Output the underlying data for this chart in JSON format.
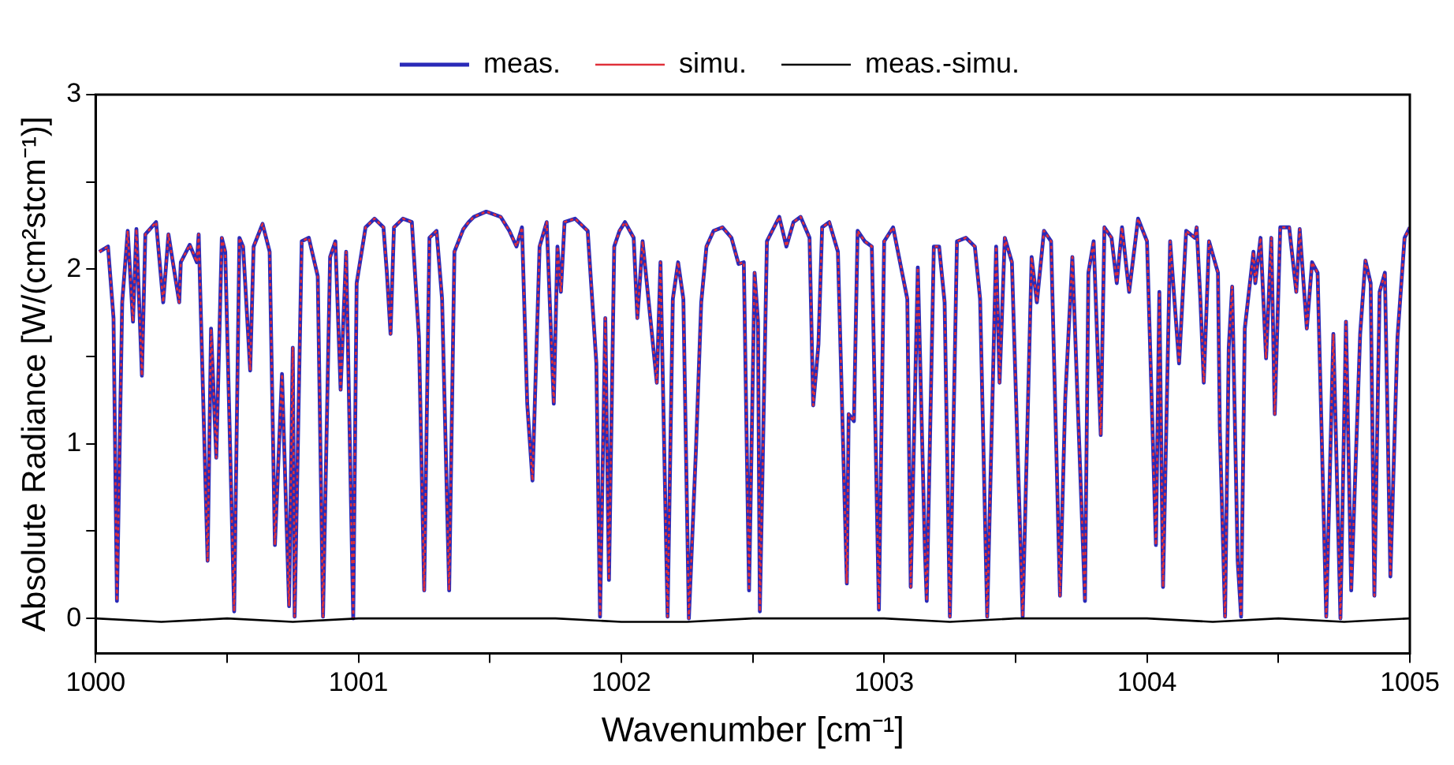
{
  "chart_data": {
    "type": "line",
    "xlabel": "Wavenumber [cm⁻¹]",
    "ylabel": "Absolute Radiance [W/(cm²stcm⁻¹)]",
    "xlim": [
      1000,
      1005
    ],
    "ylim": [
      -0.2,
      3
    ],
    "xticks": [
      1000,
      {
        "value": 1000.5,
        "label": null
      },
      1001,
      {
        "value": 1001.5,
        "label": null
      },
      1002,
      {
        "value": 1002.5,
        "label": null
      },
      1003,
      {
        "value": 1003.5,
        "label": null
      },
      1004,
      {
        "value": 1004.5,
        "label": null
      },
      1005
    ],
    "yticks": [
      0,
      {
        "value": 0.5,
        "label": null
      },
      1,
      {
        "value": 1.5,
        "label": null
      },
      2,
      {
        "value": 2.5,
        "label": null
      },
      3
    ],
    "grid": false,
    "legend": "top",
    "marker": "none",
    "x": [
      1000.014,
      1000.047,
      1000.068,
      1000.081,
      1000.101,
      1000.122,
      1000.142,
      1000.155,
      1000.176,
      1000.189,
      1000.23,
      1000.257,
      1000.277,
      1000.318,
      1000.324,
      1000.358,
      1000.385,
      1000.392,
      1000.426,
      1000.439,
      1000.459,
      1000.48,
      1000.493,
      1000.527,
      1000.547,
      1000.561,
      1000.588,
      1000.601,
      1000.635,
      1000.662,
      1000.682,
      1000.709,
      1000.736,
      1000.75,
      1000.757,
      1000.784,
      1000.811,
      1000.845,
      1000.865,
      1000.892,
      1000.912,
      1000.932,
      1000.953,
      1000.98,
      1000.993,
      1001.027,
      1001.061,
      1001.095,
      1001.108,
      1001.122,
      1001.135,
      1001.169,
      1001.203,
      1001.23,
      1001.25,
      1001.27,
      1001.297,
      1001.318,
      1001.345,
      1001.365,
      1001.399,
      1001.419,
      1001.439,
      1001.486,
      1001.541,
      1001.574,
      1001.601,
      1001.622,
      1001.642,
      1001.662,
      1001.689,
      1001.716,
      1001.743,
      1001.757,
      1001.77,
      1001.784,
      1001.824,
      1001.872,
      1001.905,
      1001.919,
      1001.939,
      1001.953,
      1001.973,
      1001.993,
      1002.014,
      1002.047,
      1002.061,
      1002.081,
      1002.135,
      1002.149,
      1002.176,
      1002.196,
      1002.216,
      1002.236,
      1002.257,
      1002.284,
      1002.304,
      1002.324,
      1002.351,
      1002.385,
      1002.419,
      1002.446,
      1002.466,
      1002.486,
      1002.507,
      1002.52,
      1002.527,
      1002.554,
      1002.601,
      1002.628,
      1002.655,
      1002.682,
      1002.716,
      1002.73,
      1002.75,
      1002.764,
      1002.791,
      1002.824,
      1002.858,
      1002.865,
      1002.885,
      1002.899,
      1002.926,
      1002.953,
      1002.98,
      1003,
      1003.034,
      1003.088,
      1003.101,
      1003.128,
      1003.155,
      1003.162,
      1003.189,
      1003.209,
      1003.23,
      1003.25,
      1003.277,
      1003.311,
      1003.345,
      1003.365,
      1003.392,
      1003.426,
      1003.439,
      1003.459,
      1003.486,
      1003.527,
      1003.561,
      1003.581,
      1003.608,
      1003.635,
      1003.669,
      1003.689,
      1003.716,
      1003.764,
      1003.777,
      1003.797,
      1003.824,
      1003.838,
      1003.865,
      1003.885,
      1003.905,
      1003.932,
      1003.966,
      1004,
      1004.034,
      1004.047,
      1004.061,
      1004.088,
      1004.122,
      1004.149,
      1004.182,
      1004.189,
      1004.203,
      1004.216,
      1004.236,
      1004.27,
      1004.277,
      1004.297,
      1004.311,
      1004.324,
      1004.345,
      1004.358,
      1004.372,
      1004.405,
      1004.412,
      1004.432,
      1004.453,
      1004.473,
      1004.486,
      1004.507,
      1004.541,
      1004.568,
      1004.581,
      1004.608,
      1004.628,
      1004.649,
      1004.682,
      1004.709,
      1004.736,
      1004.757,
      1004.777,
      1004.811,
      1004.831,
      1004.851,
      1004.865,
      1004.885,
      1004.905,
      1004.926,
      1004.953,
      1004.98,
      1005
    ],
    "series": [
      {
        "name": "meas.",
        "color": "#2a2ab8",
        "line_style": "solid",
        "values": [
          2.1,
          2.13,
          1.72,
          0.1,
          1.81,
          2.22,
          1.7,
          2.23,
          1.39,
          2.2,
          2.27,
          1.81,
          2.2,
          1.81,
          2.04,
          2.14,
          2.04,
          2.2,
          0.33,
          1.66,
          0.92,
          2.18,
          2.1,
          0.04,
          2.18,
          2.13,
          1.42,
          2.13,
          2.26,
          2.1,
          0.42,
          1.4,
          0.07,
          1.55,
          0.01,
          2.16,
          2.18,
          1.96,
          0.01,
          2.07,
          2.16,
          1.31,
          2.1,
          0,
          1.92,
          2.24,
          2.29,
          2.24,
          1.98,
          1.63,
          2.24,
          2.29,
          2.27,
          1.61,
          0.16,
          2.18,
          2.22,
          1.83,
          0.16,
          2.1,
          2.23,
          2.27,
          2.3,
          2.33,
          2.3,
          2.22,
          2.13,
          2.24,
          1.23,
          0.79,
          2.13,
          2.27,
          1.23,
          2.13,
          1.87,
          2.27,
          2.29,
          2.22,
          1.46,
          0.01,
          1.72,
          0.22,
          2.13,
          2.22,
          2.27,
          2.18,
          1.72,
          2.16,
          1.35,
          2.04,
          0.01,
          1.83,
          2.04,
          1.83,
          0,
          0.97,
          1.81,
          2.13,
          2.22,
          2.24,
          2.18,
          2.03,
          2.04,
          0.16,
          1.98,
          1.7,
          0.04,
          2.16,
          2.3,
          2.13,
          2.27,
          2.3,
          2.18,
          1.22,
          1.57,
          2.24,
          2.27,
          2.1,
          0.2,
          1.17,
          1.13,
          2.22,
          2.16,
          2.13,
          0.05,
          2.16,
          2.24,
          1.83,
          0.18,
          2.01,
          0.39,
          0.1,
          2.13,
          2.13,
          1.81,
          0.01,
          2.16,
          2.18,
          2.13,
          1.83,
          0.01,
          2.13,
          1.35,
          2.18,
          2.04,
          0.01,
          2.07,
          1.81,
          2.22,
          2.16,
          0.13,
          1.26,
          2.07,
          0.1,
          1.98,
          2.16,
          1.05,
          2.24,
          2.18,
          1.92,
          2.24,
          1.87,
          2.29,
          2.16,
          0.42,
          1.87,
          0.18,
          2.16,
          1.46,
          2.22,
          2.18,
          2.24,
          1.83,
          1.35,
          2.16,
          1.98,
          1.09,
          0.01,
          1.55,
          1.9,
          0.33,
          0.01,
          1.66,
          2.1,
          1.92,
          2.18,
          1.49,
          2.18,
          1.17,
          2.24,
          2.24,
          1.87,
          2.23,
          1.66,
          2.04,
          1.98,
          0.01,
          1.63,
          0,
          1.7,
          0.16,
          1.63,
          2.05,
          1.92,
          0.13,
          1.87,
          1.98,
          0.24,
          1.61,
          2.18,
          2.24
        ]
      },
      {
        "name": "simu.",
        "color": "#e0303a",
        "line_style": "dotted",
        "values": [
          2.1,
          2.13,
          1.72,
          0.1,
          1.81,
          2.22,
          1.7,
          2.23,
          1.39,
          2.2,
          2.27,
          1.81,
          2.2,
          1.81,
          2.04,
          2.14,
          2.04,
          2.2,
          0.33,
          1.66,
          0.92,
          2.18,
          2.1,
          0.04,
          2.18,
          2.13,
          1.42,
          2.13,
          2.26,
          2.1,
          0.42,
          1.4,
          0.07,
          1.55,
          0.01,
          2.16,
          2.18,
          1.96,
          0.01,
          2.07,
          2.16,
          1.31,
          2.1,
          0,
          1.92,
          2.24,
          2.29,
          2.24,
          1.98,
          1.63,
          2.24,
          2.29,
          2.27,
          1.61,
          0.16,
          2.18,
          2.22,
          1.83,
          0.16,
          2.1,
          2.23,
          2.27,
          2.3,
          2.33,
          2.3,
          2.22,
          2.13,
          2.24,
          1.23,
          0.79,
          2.13,
          2.27,
          1.23,
          2.13,
          1.87,
          2.27,
          2.29,
          2.22,
          1.46,
          0.01,
          1.72,
          0.22,
          2.13,
          2.22,
          2.27,
          2.18,
          1.72,
          2.16,
          1.35,
          2.04,
          0.01,
          1.83,
          2.04,
          1.83,
          0,
          0.97,
          1.81,
          2.13,
          2.22,
          2.24,
          2.18,
          2.03,
          2.04,
          0.16,
          1.98,
          1.7,
          0.04,
          2.16,
          2.3,
          2.13,
          2.27,
          2.3,
          2.18,
          1.22,
          1.57,
          2.24,
          2.27,
          2.1,
          0.2,
          1.17,
          1.13,
          2.22,
          2.16,
          2.13,
          0.05,
          2.16,
          2.24,
          1.83,
          0.18,
          2.01,
          0.39,
          0.1,
          2.13,
          2.13,
          1.81,
          0.01,
          2.16,
          2.18,
          2.13,
          1.83,
          0.01,
          2.13,
          1.35,
          2.18,
          2.04,
          0.01,
          2.07,
          1.81,
          2.22,
          2.16,
          0.13,
          1.26,
          2.07,
          0.1,
          1.98,
          2.16,
          1.05,
          2.24,
          2.18,
          1.92,
          2.24,
          1.87,
          2.29,
          2.16,
          0.42,
          1.87,
          0.18,
          2.16,
          1.46,
          2.22,
          2.18,
          2.24,
          1.83,
          1.35,
          2.16,
          1.98,
          1.09,
          0.01,
          1.55,
          1.9,
          0.33,
          0.01,
          1.66,
          2.1,
          1.92,
          2.18,
          1.49,
          2.18,
          1.17,
          2.24,
          2.24,
          1.87,
          2.23,
          1.66,
          2.04,
          1.98,
          0.01,
          1.63,
          0,
          1.7,
          0.16,
          1.63,
          2.05,
          1.92,
          0.13,
          1.87,
          1.98,
          0.24,
          1.61,
          2.18,
          2.24
        ]
      },
      {
        "name": "meas.-simu.",
        "color": "#000000",
        "line_style": "solid",
        "x": [
          1000,
          1000.25,
          1000.5,
          1000.75,
          1001,
          1001.25,
          1001.5,
          1001.75,
          1002,
          1002.25,
          1002.5,
          1002.75,
          1003,
          1003.25,
          1003.5,
          1003.75,
          1004,
          1004.25,
          1004.5,
          1004.75,
          1005
        ],
        "values": [
          0,
          -0.02,
          0,
          -0.02,
          0,
          0,
          0,
          0,
          -0.02,
          -0.02,
          0,
          0,
          0,
          -0.02,
          0,
          0,
          0,
          -0.02,
          0,
          -0.02,
          0
        ]
      }
    ]
  }
}
